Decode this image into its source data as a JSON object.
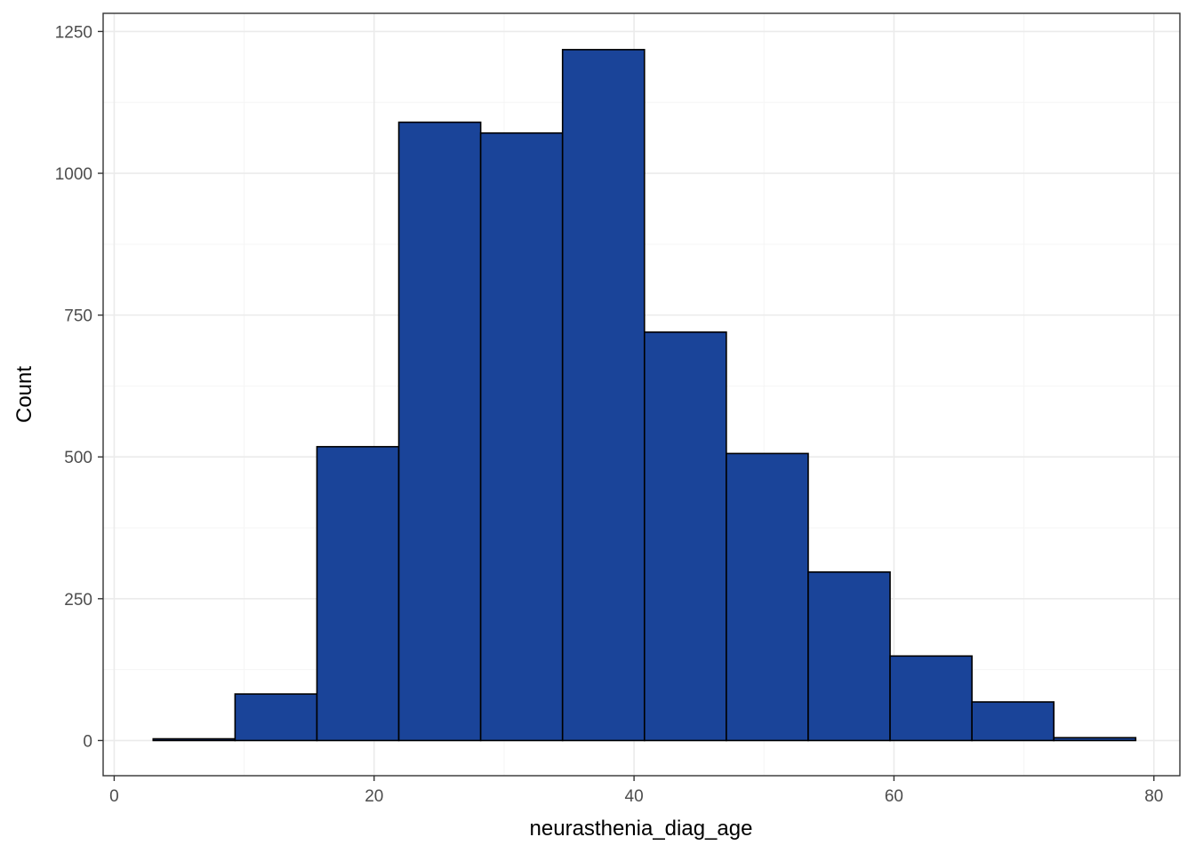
{
  "chart_data": {
    "type": "bar",
    "subtype": "histogram",
    "title": "",
    "xlabel": "neurasthenia_diag_age",
    "ylabel": "Count",
    "bins": [
      {
        "x0": 3.0,
        "x1": 9.3,
        "count": 3
      },
      {
        "x0": 9.3,
        "x1": 15.6,
        "count": 82
      },
      {
        "x0": 15.6,
        "x1": 21.9,
        "count": 518
      },
      {
        "x0": 21.9,
        "x1": 28.2,
        "count": 1090
      },
      {
        "x0": 28.2,
        "x1": 34.5,
        "count": 1071
      },
      {
        "x0": 34.5,
        "x1": 40.8,
        "count": 1218
      },
      {
        "x0": 40.8,
        "x1": 47.1,
        "count": 720
      },
      {
        "x0": 47.1,
        "x1": 53.4,
        "count": 506
      },
      {
        "x0": 53.4,
        "x1": 59.7,
        "count": 297
      },
      {
        "x0": 59.7,
        "x1": 66.0,
        "count": 149
      },
      {
        "x0": 66.0,
        "x1": 72.3,
        "count": 68
      },
      {
        "x0": 72.3,
        "x1": 78.6,
        "count": 5
      }
    ],
    "xlim": [
      -0.85,
      82.0
    ],
    "ylim": [
      -62,
      1282
    ],
    "x_ticks": [
      0,
      20,
      40,
      60,
      80
    ],
    "x_tick_labels": [
      "0",
      "20",
      "40",
      "60",
      "80"
    ],
    "y_ticks": [
      0,
      250,
      500,
      750,
      1000,
      1250
    ],
    "y_tick_labels": [
      "0",
      "250",
      "500",
      "750",
      "1000",
      "1250"
    ],
    "x_minor_ticks": [
      10,
      30,
      50,
      70
    ],
    "y_minor_ticks": [
      125,
      375,
      625,
      875,
      1125
    ],
    "grid": true,
    "legend": "none",
    "colors": {
      "bar_fill": "#1a4499",
      "bar_stroke": "#000000",
      "grid_major": "#ebebeb",
      "grid_minor": "#f5f5f5",
      "panel_border": "#333333"
    }
  }
}
